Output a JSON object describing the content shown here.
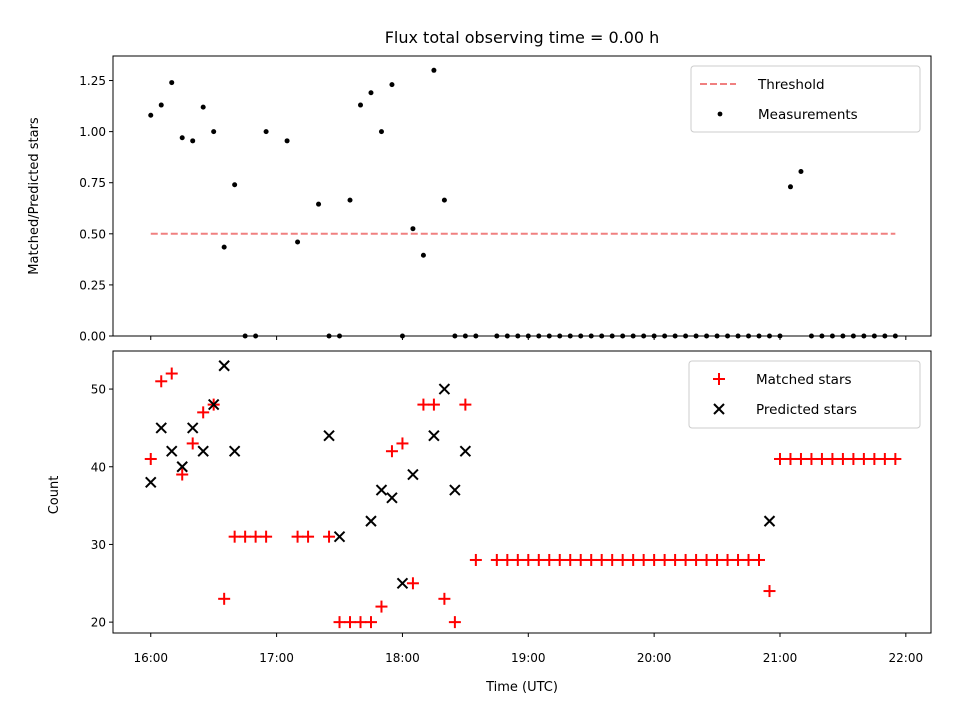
{
  "chart_data": [
    {
      "type": "scatter",
      "title": "Flux total observing time = 0.00 h",
      "xlabel": "",
      "ylabel": "Matched/Predicted stars",
      "xlim": [
        "15:42",
        "22:12"
      ],
      "ylim": [
        0,
        1.37
      ],
      "yticks": [
        "0.00",
        "0.25",
        "0.50",
        "0.75",
        "1.00",
        "1.25"
      ],
      "grid": false,
      "legend_position": "top-right",
      "threshold": {
        "name": "Threshold",
        "value": 0.5,
        "x_start": "16:00",
        "x_end": "21:55",
        "color": "#f08080"
      },
      "series": [
        {
          "name": "Measurements",
          "color": "#000000",
          "x": [
            "16:00",
            "16:05",
            "16:10",
            "16:15",
            "16:20",
            "16:25",
            "16:30",
            "16:35",
            "16:40",
            "16:45",
            "16:50",
            "16:55",
            "17:05",
            "17:10",
            "17:20",
            "17:25",
            "17:30",
            "17:35",
            "17:40",
            "17:45",
            "17:50",
            "17:55",
            "18:00",
            "18:05",
            "18:10",
            "18:15",
            "18:20",
            "18:25",
            "18:30",
            "18:35",
            "18:45",
            "18:50",
            "18:55",
            "19:00",
            "19:05",
            "19:10",
            "19:15",
            "19:20",
            "19:25",
            "19:30",
            "19:35",
            "19:40",
            "19:45",
            "19:50",
            "19:55",
            "20:00",
            "20:05",
            "20:10",
            "20:15",
            "20:20",
            "20:25",
            "20:30",
            "20:35",
            "20:40",
            "20:45",
            "20:50",
            "20:55",
            "21:00",
            "21:05",
            "21:10",
            "21:15",
            "21:20",
            "21:25",
            "21:30",
            "21:35",
            "21:40",
            "21:45",
            "21:50",
            "21:55"
          ],
          "y": [
            1.08,
            1.13,
            1.24,
            0.97,
            0.955,
            1.12,
            1.0,
            0.435,
            0.74,
            0,
            0,
            1.0,
            0.955,
            0.46,
            0.645,
            0,
            0,
            0.665,
            1.13,
            1.19,
            1.0,
            1.23,
            0,
            0.525,
            0.395,
            1.3,
            0.665,
            0,
            0,
            0,
            0,
            0,
            0,
            0,
            0,
            0,
            0,
            0,
            0,
            0,
            0,
            0,
            0,
            0,
            0,
            0,
            0,
            0,
            0,
            0,
            0,
            0,
            0,
            0,
            0,
            0,
            0,
            0,
            0.73,
            0.805,
            0,
            0,
            0,
            0,
            0,
            0,
            0,
            0,
            0
          ]
        }
      ]
    },
    {
      "type": "scatter",
      "title": "",
      "xlabel": "Time (UTC)",
      "ylabel": "Count",
      "xlim": [
        "15:42",
        "22:12"
      ],
      "ylim": [
        18.6,
        54.9
      ],
      "yticks": [
        "20",
        "30",
        "40",
        "50"
      ],
      "xticks": [
        "16:00",
        "17:00",
        "18:00",
        "19:00",
        "20:00",
        "21:00",
        "22:00"
      ],
      "grid": false,
      "legend_position": "top-right",
      "series": [
        {
          "name": "Matched stars",
          "marker": "plus",
          "color": "#ff0000",
          "x": [
            "16:00",
            "16:05",
            "16:10",
            "16:15",
            "16:20",
            "16:25",
            "16:30",
            "16:35",
            "16:40",
            "16:45",
            "16:50",
            "16:55",
            "17:10",
            "17:15",
            "17:25",
            "17:30",
            "17:35",
            "17:40",
            "17:45",
            "17:50",
            "17:55",
            "18:00",
            "18:05",
            "18:10",
            "18:15",
            "18:20",
            "18:25",
            "18:30",
            "18:35",
            "18:45",
            "18:50",
            "18:55",
            "19:00",
            "19:05",
            "19:10",
            "19:15",
            "19:20",
            "19:25",
            "19:30",
            "19:35",
            "19:40",
            "19:45",
            "19:50",
            "19:55",
            "20:00",
            "20:05",
            "20:10",
            "20:15",
            "20:20",
            "20:25",
            "20:30",
            "20:35",
            "20:40",
            "20:45",
            "20:50",
            "20:55",
            "21:00",
            "21:05",
            "21:10",
            "21:15",
            "21:20",
            "21:25",
            "21:30",
            "21:35",
            "21:40",
            "21:45",
            "21:50",
            "21:55"
          ],
          "y": [
            41,
            51,
            52,
            39,
            43,
            47,
            48,
            23,
            31,
            31,
            31,
            31,
            31,
            31,
            31,
            20,
            20,
            20,
            20,
            22,
            42,
            43,
            25,
            48,
            48,
            23,
            20,
            48,
            28,
            28,
            28,
            28,
            28,
            28,
            28,
            28,
            28,
            28,
            28,
            28,
            28,
            28,
            28,
            28,
            28,
            28,
            28,
            28,
            28,
            28,
            28,
            28,
            28,
            28,
            28,
            24,
            41,
            41,
            41,
            41,
            41,
            41,
            41,
            41,
            41,
            41,
            41,
            41
          ]
        },
        {
          "name": "Predicted stars",
          "marker": "x",
          "color": "#000000",
          "x": [
            "16:00",
            "16:05",
            "16:10",
            "16:15",
            "16:20",
            "16:25",
            "16:30",
            "16:35",
            "16:40",
            "17:25",
            "17:30",
            "17:45",
            "17:50",
            "17:55",
            "18:00",
            "18:05",
            "18:15",
            "18:20",
            "18:25",
            "18:30",
            "20:55"
          ],
          "y": [
            38,
            45,
            42,
            40,
            45,
            42,
            48,
            53,
            42,
            44,
            31,
            33,
            37,
            36,
            25,
            39,
            44,
            50,
            37,
            42,
            33
          ]
        }
      ]
    }
  ]
}
